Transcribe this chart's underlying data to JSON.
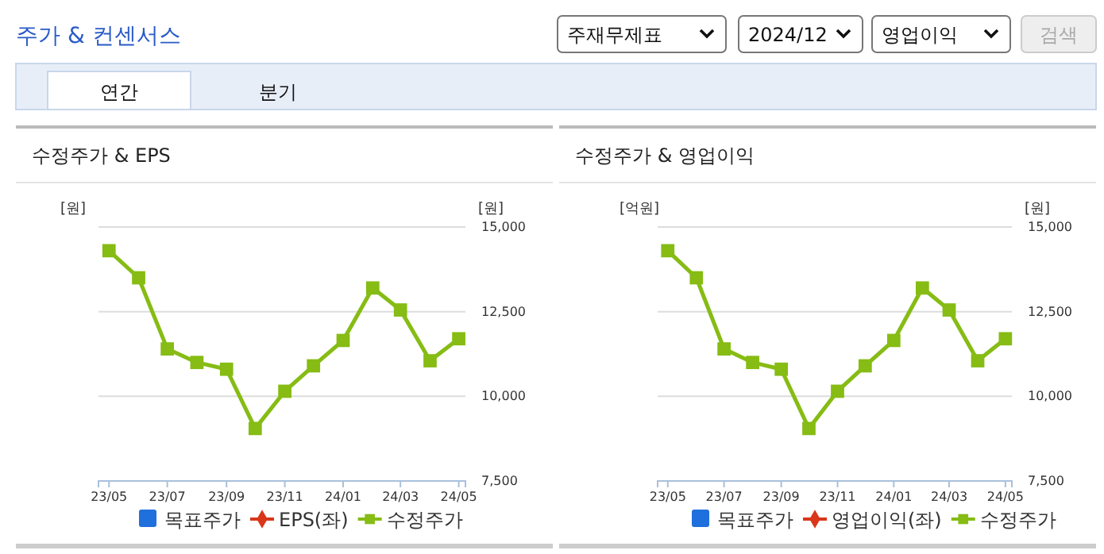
{
  "chart_data": [
    {
      "type": "other",
      "title": "주가 & 컨센서스",
      "annotations": [
        "주재무제표",
        "2024/12",
        "영업이익",
        "검색",
        "연간",
        "분기"
      ]
    },
    {
      "type": "line",
      "title": "수정주가 & EPS",
      "ylabel": "[원]",
      "y2label": "[원]",
      "x": [
        "2023-05",
        "2023-06",
        "2023-07",
        "2023-08",
        "2023-09",
        "2023-10",
        "2023-11",
        "2023-12",
        "2024-01",
        "2024-02",
        "2024-03",
        "2024-04",
        "2024-05"
      ],
      "xlim": [
        "2023-04-20",
        "2024-05-08"
      ],
      "xticks": [
        {
          "value": "2023-05",
          "label": "23/05"
        },
        {
          "value": "2023-07",
          "label": "23/07"
        },
        {
          "value": "2023-09",
          "label": "23/09"
        },
        {
          "value": "2023-11",
          "label": "23/11"
        },
        {
          "value": "2024-01",
          "label": "24/01"
        },
        {
          "value": "2024-03",
          "label": "24/03"
        },
        {
          "value": "2024-05",
          "label": "24/05"
        }
      ],
      "y2lim": [
        7500,
        15000
      ],
      "y2ticks": [
        {
          "value": 7500,
          "label": "7,500"
        },
        {
          "value": 10000,
          "label": "10,000"
        },
        {
          "value": 12500,
          "label": "12,500"
        },
        {
          "value": 15000,
          "label": "15,000"
        }
      ],
      "grid": "y",
      "legend": "bottom",
      "series": [
        {
          "name": "목표주가",
          "type": "bar",
          "color": "#1f6fdc",
          "values": [
            null,
            null,
            null,
            null,
            null,
            null,
            null,
            null,
            null,
            null,
            null,
            null,
            null
          ]
        },
        {
          "name": "EPS(좌)",
          "type": "line",
          "marker": "diamond",
          "color": "#d9361a",
          "values": [
            null,
            null,
            null,
            null,
            null,
            null,
            null,
            null,
            null,
            null,
            null,
            null,
            null
          ]
        },
        {
          "name": "수정주가",
          "type": "line",
          "marker": "square",
          "axis": "y2",
          "color": "#86bc14",
          "values": [
            14300,
            13500,
            11400,
            11000,
            10800,
            9050,
            10150,
            10900,
            11650,
            13200,
            12550,
            11050,
            11700
          ]
        }
      ]
    },
    {
      "type": "line",
      "title": "수정주가 & 영업이익",
      "ylabel": "[억원]",
      "y2label": "[원]",
      "x": [
        "2023-05",
        "2023-06",
        "2023-07",
        "2023-08",
        "2023-09",
        "2023-10",
        "2023-11",
        "2023-12",
        "2024-01",
        "2024-02",
        "2024-03",
        "2024-04",
        "2024-05"
      ],
      "xlim": [
        "2023-04-20",
        "2024-05-08"
      ],
      "xticks": [
        {
          "value": "2023-05",
          "label": "23/05"
        },
        {
          "value": "2023-07",
          "label": "23/07"
        },
        {
          "value": "2023-09",
          "label": "23/09"
        },
        {
          "value": "2023-11",
          "label": "23/11"
        },
        {
          "value": "2024-01",
          "label": "24/01"
        },
        {
          "value": "2024-03",
          "label": "24/03"
        },
        {
          "value": "2024-05",
          "label": "24/05"
        }
      ],
      "y2lim": [
        7500,
        15000
      ],
      "y2ticks": [
        {
          "value": 7500,
          "label": "7,500"
        },
        {
          "value": 10000,
          "label": "10,000"
        },
        {
          "value": 12500,
          "label": "12,500"
        },
        {
          "value": 15000,
          "label": "15,000"
        }
      ],
      "grid": "y",
      "legend": "bottom",
      "series": [
        {
          "name": "목표주가",
          "type": "bar",
          "color": "#1f6fdc",
          "values": [
            null,
            null,
            null,
            null,
            null,
            null,
            null,
            null,
            null,
            null,
            null,
            null,
            null
          ]
        },
        {
          "name": "영업이익(좌)",
          "type": "line",
          "marker": "diamond",
          "color": "#d9361a",
          "values": [
            null,
            null,
            null,
            null,
            null,
            null,
            null,
            null,
            null,
            null,
            null,
            null,
            null
          ]
        },
        {
          "name": "수정주가",
          "type": "line",
          "marker": "square",
          "axis": "y2",
          "color": "#86bc14",
          "values": [
            14300,
            13500,
            11400,
            11000,
            10800,
            9050,
            10150,
            10900,
            11650,
            13200,
            12550,
            11050,
            11700
          ]
        }
      ]
    }
  ]
}
